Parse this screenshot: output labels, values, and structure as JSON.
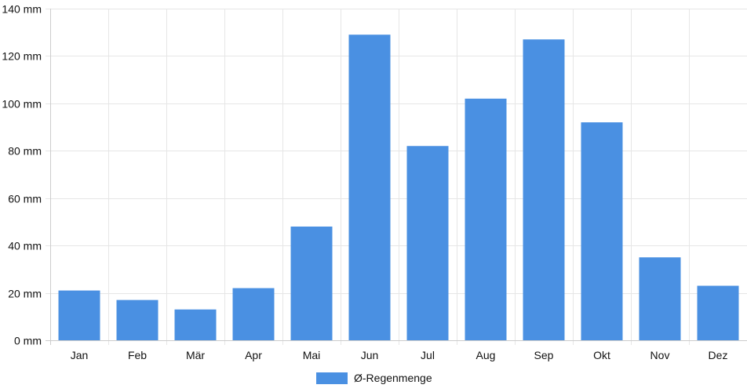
{
  "chart_data": {
    "type": "bar",
    "categories": [
      "Jan",
      "Feb",
      "Mär",
      "Apr",
      "Mai",
      "Jun",
      "Jul",
      "Aug",
      "Sep",
      "Okt",
      "Nov",
      "Dez"
    ],
    "series": [
      {
        "name": "Ø-Regenmenge",
        "values": [
          21,
          17,
          13,
          22,
          48,
          129,
          82,
          102,
          127,
          92,
          35,
          23
        ]
      }
    ],
    "ylim": [
      0,
      140
    ],
    "yticks": [
      0,
      20,
      40,
      60,
      80,
      100,
      120,
      140
    ],
    "ytick_labels": [
      "0 mm",
      "20 mm",
      "40 mm",
      "60 mm",
      "80 mm",
      "100 mm",
      "120 mm",
      "140 mm"
    ],
    "grid": true,
    "legend_position": "bottom-center",
    "colors": {
      "bar": "#4a90e2",
      "grid": "#e6e6e6",
      "axis": "#cccccc"
    }
  }
}
